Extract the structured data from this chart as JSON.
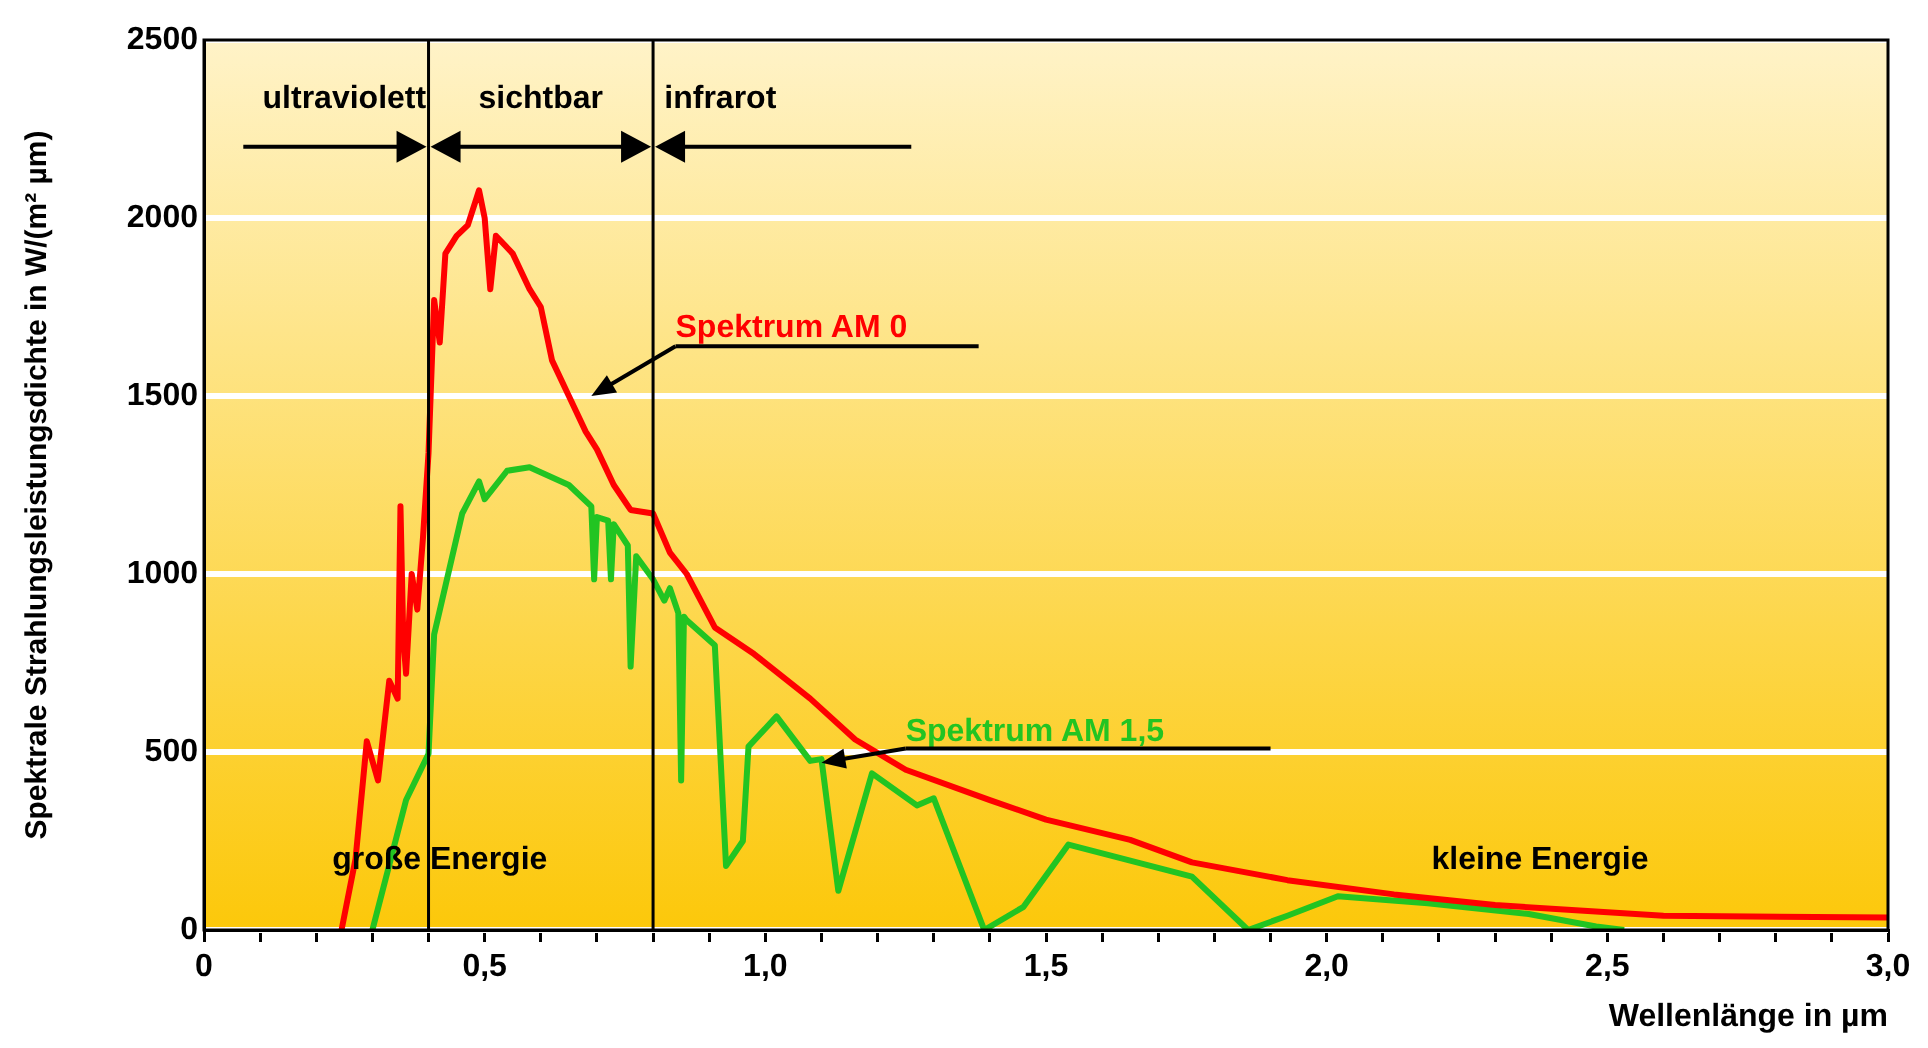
{
  "chart_data": {
    "type": "line",
    "xlabel": "Wellenlänge in µm",
    "ylabel": "Spektrale Strahlungsleistungsdichte in W/(m² µm)",
    "xlim": [
      0,
      3
    ],
    "ylim": [
      0,
      2500
    ],
    "xticks": [
      {
        "value": 0,
        "label": "0"
      },
      {
        "value": 0.1,
        "label": null
      },
      {
        "value": 0.2,
        "label": null
      },
      {
        "value": 0.3,
        "label": null
      },
      {
        "value": 0.4,
        "label": null
      },
      {
        "value": 0.5,
        "label": "0,5"
      },
      {
        "value": 0.6,
        "label": null
      },
      {
        "value": 0.7,
        "label": null
      },
      {
        "value": 0.8,
        "label": null
      },
      {
        "value": 0.9,
        "label": null
      },
      {
        "value": 1,
        "label": "1,0"
      },
      {
        "value": 1.1,
        "label": null
      },
      {
        "value": 1.2,
        "label": null
      },
      {
        "value": 1.3,
        "label": null
      },
      {
        "value": 1.4,
        "label": null
      },
      {
        "value": 1.5,
        "label": "1,5"
      },
      {
        "value": 1.6,
        "label": null
      },
      {
        "value": 1.7,
        "label": null
      },
      {
        "value": 1.8,
        "label": null
      },
      {
        "value": 1.9,
        "label": null
      },
      {
        "value": 2,
        "label": "2,0"
      },
      {
        "value": 2.1,
        "label": null
      },
      {
        "value": 2.2,
        "label": null
      },
      {
        "value": 2.3,
        "label": null
      },
      {
        "value": 2.4,
        "label": null
      },
      {
        "value": 2.5,
        "label": "2,5"
      },
      {
        "value": 2.6,
        "label": null
      },
      {
        "value": 2.7,
        "label": null
      },
      {
        "value": 2.8,
        "label": null
      },
      {
        "value": 2.9,
        "label": null
      },
      {
        "value": 3,
        "label": "3,0"
      }
    ],
    "yticks": [
      0,
      500,
      1000,
      1500,
      2000,
      2500
    ],
    "grid": "y",
    "legend": false,
    "marker": "none",
    "line_style": "solid",
    "series": [
      {
        "name": "Spektrum AM 0",
        "color": "#ff0000",
        "x": [
          0.245,
          0.27,
          0.29,
          0.31,
          0.33,
          0.345,
          0.35,
          0.355,
          0.36,
          0.37,
          0.38,
          0.39,
          0.4,
          0.41,
          0.42,
          0.43,
          0.45,
          0.47,
          0.49,
          0.5,
          0.51,
          0.52,
          0.55,
          0.58,
          0.6,
          0.62,
          0.65,
          0.68,
          0.7,
          0.73,
          0.76,
          0.8,
          0.83,
          0.86,
          0.91,
          0.98,
          1.08,
          1.16,
          1.25,
          1.4,
          1.5,
          1.65,
          1.76,
          1.93,
          2.12,
          2.3,
          2.6,
          3.0
        ],
        "values": [
          0,
          200,
          530,
          420,
          700,
          650,
          1190,
          820,
          720,
          1000,
          900,
          1100,
          1340,
          1770,
          1650,
          1900,
          1950,
          1980,
          2078,
          2000,
          1800,
          1950,
          1900,
          1800,
          1750,
          1600,
          1500,
          1400,
          1350,
          1250,
          1180,
          1170,
          1060,
          1000,
          850,
          775,
          650,
          535,
          450,
          365,
          310,
          253,
          190,
          140,
          100,
          70,
          40,
          35
        ]
      },
      {
        "name": "Spektrum AM 1,5",
        "color": "#22c422",
        "x": [
          0.3,
          0.36,
          0.4,
          0.41,
          0.46,
          0.49,
          0.5,
          0.54,
          0.58,
          0.65,
          0.69,
          0.695,
          0.7,
          0.72,
          0.725,
          0.73,
          0.755,
          0.76,
          0.77,
          0.8,
          0.82,
          0.83,
          0.845,
          0.85,
          0.855,
          0.86,
          0.91,
          0.93,
          0.96,
          0.97,
          1.02,
          1.08,
          1.1,
          1.13,
          1.19,
          1.27,
          1.3,
          1.39,
          1.46,
          1.54,
          1.76,
          1.86,
          1.93,
          2.02,
          2.18,
          2.36,
          2.48,
          2.53
        ],
        "values": [
          0,
          365,
          495,
          830,
          1170,
          1260,
          1210,
          1290,
          1300,
          1250,
          1190,
          985,
          1160,
          1150,
          985,
          1140,
          1080,
          740,
          1050,
          985,
          925,
          960,
          890,
          420,
          880,
          870,
          800,
          180,
          250,
          515,
          600,
          475,
          480,
          110,
          440,
          350,
          370,
          0,
          65,
          240,
          150,
          0,
          40,
          95,
          75,
          45,
          10,
          0
        ]
      }
    ],
    "ref_lines": [
      {
        "axis": "x",
        "value": 0.4,
        "color": "#000000"
      },
      {
        "axis": "x",
        "value": 0.8,
        "color": "#000000"
      }
    ],
    "annotations": [
      "ultraviolett",
      "sichtbar",
      "infrarot",
      "große Energie",
      "kleine Energie"
    ]
  }
}
